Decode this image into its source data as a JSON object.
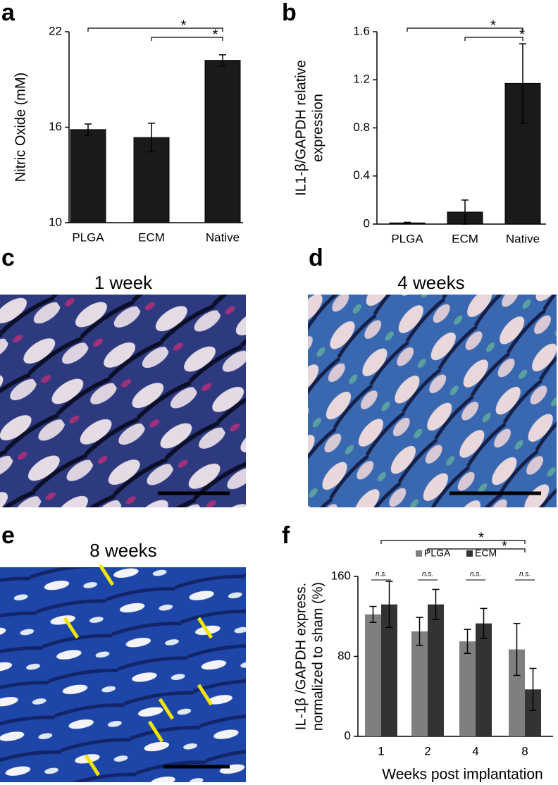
{
  "panel_labels": [
    "a",
    "b",
    "c",
    "d",
    "e",
    "f"
  ],
  "images": [
    {
      "title": "1 week"
    },
    {
      "title": "4 weeks"
    },
    {
      "title": "8 weeks"
    }
  ],
  "chart_data": [
    {
      "type": "bar",
      "ylabel": [
        "Nitric Oxide (mM)"
      ],
      "categories": [
        "PLGA",
        "ECM",
        "Native"
      ],
      "values": [
        15.85,
        15.35,
        20.2
      ],
      "errors": [
        0.35,
        0.9,
        0.35
      ],
      "color": "#1a1a1a",
      "ylim": [
        10,
        22
      ],
      "yticks": [
        10,
        16,
        22
      ],
      "significance": [
        {
          "from": 0,
          "to": 2,
          "label": "*"
        },
        {
          "from": 1,
          "to": 2,
          "label": "*"
        }
      ]
    },
    {
      "type": "bar",
      "ylabel": [
        "IL1-β/GAPDH relative",
        "expression"
      ],
      "categories": [
        "PLGA",
        "ECM",
        "Native"
      ],
      "values": [
        0.01,
        0.1,
        1.17
      ],
      "errors": [
        0.005,
        0.1,
        0.33
      ],
      "color": "#1a1a1a",
      "ylim": [
        0,
        1.6
      ],
      "yticks": [
        0,
        0.4,
        0.8,
        1.2,
        1.6
      ],
      "significance": [
        {
          "from": 0,
          "to": 2,
          "label": "*"
        },
        {
          "from": 1,
          "to": 2,
          "label": "*"
        }
      ]
    },
    {
      "type": "grouped-bar",
      "ylabel": [
        "IL-1β /GAPDH express.",
        "normalized to sham (%)"
      ],
      "xlabel": "Weeks post implantation",
      "categories": [
        "1",
        "2",
        "4",
        "8"
      ],
      "series": [
        {
          "name": "PLGA",
          "color": "#7f7f7f",
          "values": [
            122,
            105,
            95,
            87
          ],
          "errors": [
            8,
            14,
            12,
            26
          ]
        },
        {
          "name": "ECM",
          "color": "#333333",
          "values": [
            132,
            132,
            113,
            47
          ],
          "errors": [
            23,
            15,
            15,
            21
          ]
        }
      ],
      "ylim": [
        0,
        160
      ],
      "yticks": [
        0,
        80,
        160
      ],
      "pair_labels": [
        "n.s.",
        "n.s.",
        "n.s.",
        "n.s."
      ],
      "significance": [
        {
          "from": 0,
          "to": 3,
          "label": "*"
        },
        {
          "from": 1,
          "to": 3,
          "label": "*"
        }
      ]
    }
  ]
}
